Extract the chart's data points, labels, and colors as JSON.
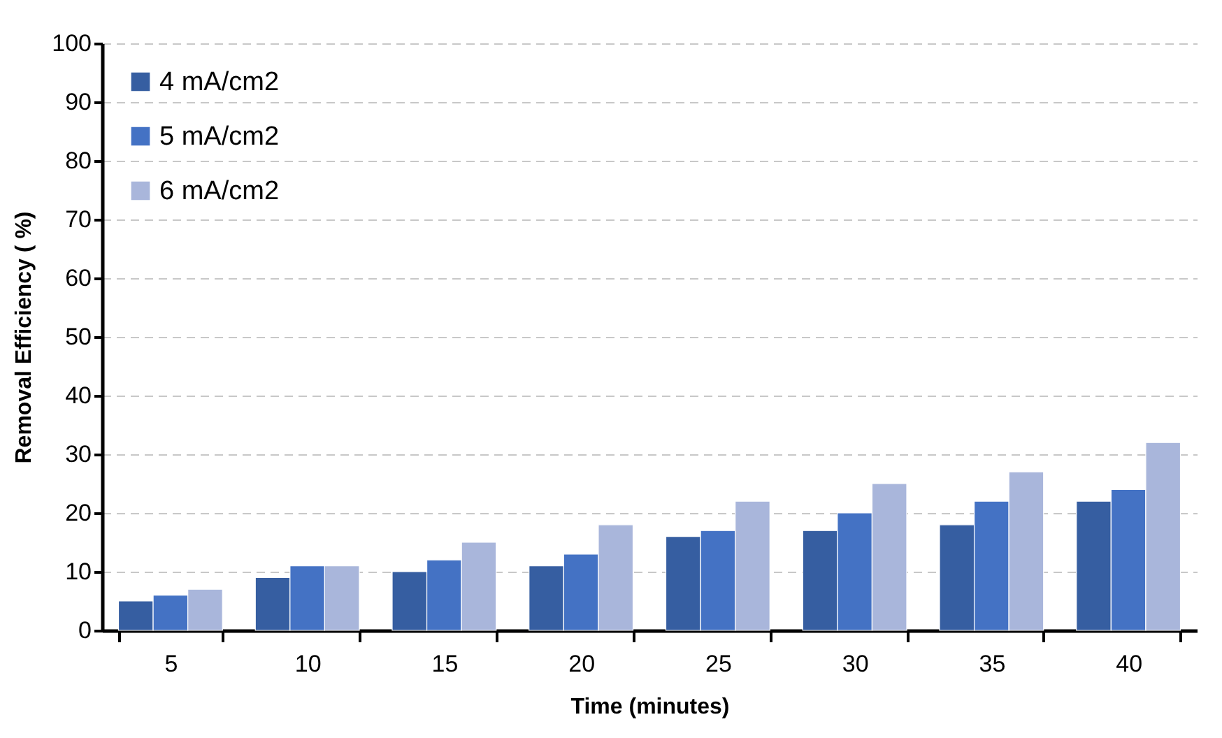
{
  "chart_data": {
    "type": "bar",
    "xlabel": "Time (minutes)",
    "ylabel": "Removal Efficiency ( %)",
    "categories": [
      "5",
      "10",
      "15",
      "20",
      "25",
      "30",
      "35",
      "40"
    ],
    "series": [
      {
        "name": "4 mA/cm2",
        "color": "#365ea1",
        "values": [
          5,
          9,
          10,
          11,
          16,
          17,
          18,
          22
        ]
      },
      {
        "name": "5  mA/cm2",
        "color": "#4472c4",
        "values": [
          6,
          11,
          12,
          13,
          17,
          20,
          22,
          24
        ]
      },
      {
        "name": "6  mA/cm2",
        "color": "#a9b6db",
        "values": [
          7,
          11,
          15,
          18,
          22,
          25,
          27,
          32
        ]
      }
    ],
    "ylim": [
      0,
      100
    ],
    "yticks": [
      0,
      10,
      20,
      30,
      40,
      50,
      60,
      70,
      80,
      90,
      100
    ],
    "grid": "y",
    "legend": "top left"
  }
}
